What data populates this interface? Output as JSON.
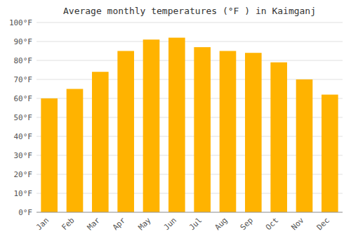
{
  "chart_data": {
    "type": "bar",
    "title": "Average monthly temperatures (°F ) in Kaimganj",
    "categories": [
      "Jan",
      "Feb",
      "Mar",
      "Apr",
      "May",
      "Jun",
      "Jul",
      "Aug",
      "Sep",
      "Oct",
      "Nov",
      "Dec"
    ],
    "values": [
      60,
      65,
      74,
      85,
      91,
      92,
      87,
      85,
      84,
      79,
      70,
      62
    ],
    "color": "#FFB300",
    "ylim": [
      0,
      100
    ],
    "yticks": [
      {
        "value": 0,
        "label": "0°F"
      },
      {
        "value": 10,
        "label": "10°F"
      },
      {
        "value": 20,
        "label": "20°F"
      },
      {
        "value": 30,
        "label": "30°F"
      },
      {
        "value": 40,
        "label": "40°F"
      },
      {
        "value": 50,
        "label": "50°F"
      },
      {
        "value": 60,
        "label": "60°F"
      },
      {
        "value": 70,
        "label": "70°F"
      },
      {
        "value": 80,
        "label": "80°F"
      },
      {
        "value": 90,
        "label": "90°F"
      },
      {
        "value": 100,
        "label": "100°F"
      }
    ],
    "grid": true
  }
}
